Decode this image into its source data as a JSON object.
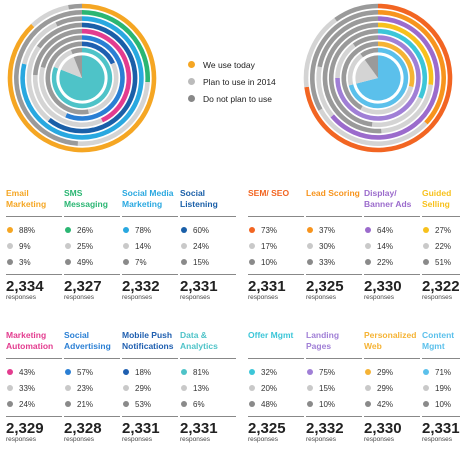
{
  "legend": [
    {
      "label": "We use today",
      "color": "#f5a623"
    },
    {
      "label": "Plan to use in 2014",
      "color": "#bbbbbb"
    },
    {
      "label": "Do not plan to use",
      "color": "#888888"
    }
  ],
  "colors": {
    "use_today_dot": "#f5a623",
    "plan_2014_dot": "#c9c9c9",
    "not_plan_dot": "#8a8a8a",
    "ring_plan": "#d4d4d4",
    "ring_not_plan": "#9a9a9a",
    "divider": "#888888"
  },
  "responses_label": "responses",
  "chart_data": [
    {
      "type": "radial-bar",
      "title": "",
      "series_legend": [
        "We use today",
        "Plan to use in 2014",
        "Do not plan to use"
      ],
      "categories": [
        "Email Marketing",
        "SMS Messaging",
        "Social Media Marketing",
        "Social Listening",
        "Marketing Automation",
        "Social Advertising",
        "Mobile Push Notifications",
        "Data & Analytics"
      ],
      "ring_colors": [
        "#f5a623",
        "#2bb673",
        "#29a8e0",
        "#1a5fa8",
        "#e33c8f",
        "#2a7fd4",
        "#1f5fb0",
        "#4ec3c8"
      ],
      "use_today": [
        88,
        26,
        78,
        60,
        43,
        57,
        18,
        81
      ],
      "plan_2014": [
        9,
        25,
        14,
        24,
        33,
        23,
        29,
        13
      ],
      "not_plan": [
        3,
        49,
        7,
        15,
        24,
        21,
        53,
        6
      ]
    },
    {
      "type": "radial-bar",
      "title": "",
      "series_legend": [
        "We use today",
        "Plan to use in 2014",
        "Do not plan to use"
      ],
      "categories": [
        "SEM/SEO",
        "Lead Scoring",
        "Display/Banner Ads",
        "Guided Selling",
        "Offer Mgmt",
        "Landing Pages",
        "Personalized Web",
        "Content Mgmt"
      ],
      "ring_colors": [
        "#f26522",
        "#f7941d",
        "#9b6bcc",
        "#f7c11d",
        "#3cc6d8",
        "#a07fd6",
        "#f5b335",
        "#5bc0eb"
      ],
      "use_today": [
        73,
        37,
        64,
        27,
        32,
        75,
        29,
        71
      ],
      "plan_2014": [
        17,
        30,
        14,
        22,
        20,
        15,
        29,
        19
      ],
      "not_plan": [
        10,
        33,
        22,
        51,
        48,
        10,
        42,
        10
      ]
    }
  ],
  "blocks": [
    {
      "columns": [
        {
          "name": "Email Marketing",
          "color": "#f5a623",
          "stats": [
            "88%",
            "9%",
            "3%"
          ],
          "total": "2,334"
        },
        {
          "name": "SMS Messaging",
          "color": "#2bb673",
          "stats": [
            "26%",
            "25%",
            "49%"
          ],
          "total": "2,327"
        },
        {
          "name": "Social Media Marketing",
          "color": "#29a8e0",
          "stats": [
            "78%",
            "14%",
            "7%"
          ],
          "total": "2,332"
        },
        {
          "name": "Social Listening",
          "color": "#1a5fa8",
          "stats": [
            "60%",
            "24%",
            "15%"
          ],
          "total": "2,331"
        }
      ]
    },
    {
      "columns": [
        {
          "name": "SEM/ SEO",
          "color": "#f26522",
          "stats": [
            "73%",
            "17%",
            "10%"
          ],
          "total": "2,331"
        },
        {
          "name": "Lead Scoring",
          "color": "#f7941d",
          "stats": [
            "37%",
            "30%",
            "33%"
          ],
          "total": "2,325"
        },
        {
          "name": "Display/ Banner Ads",
          "color": "#9b6bcc",
          "stats": [
            "64%",
            "14%",
            "22%"
          ],
          "total": "2,330"
        },
        {
          "name": "Guided Selling",
          "color": "#f7c11d",
          "stats": [
            "27%",
            "22%",
            "51%"
          ],
          "total": "2,322"
        }
      ]
    },
    {
      "columns": [
        {
          "name": "Marketing Automation",
          "color": "#e33c8f",
          "stats": [
            "43%",
            "33%",
            "24%"
          ],
          "total": "2,329"
        },
        {
          "name": "Social Advertising",
          "color": "#2a7fd4",
          "stats": [
            "57%",
            "23%",
            "21%"
          ],
          "total": "2,328"
        },
        {
          "name": "Mobile Push Notifications",
          "color": "#1f5fb0",
          "stats": [
            "18%",
            "29%",
            "53%"
          ],
          "total": "2,331"
        },
        {
          "name": "Data & Analytics",
          "color": "#4ec3c8",
          "stats": [
            "81%",
            "13%",
            "6%"
          ],
          "total": "2,331"
        }
      ]
    },
    {
      "columns": [
        {
          "name": "Offer Mgmt",
          "color": "#3cc6d8",
          "stats": [
            "32%",
            "20%",
            "48%"
          ],
          "total": "2,325"
        },
        {
          "name": "Landing Pages",
          "color": "#a07fd6",
          "stats": [
            "75%",
            "15%",
            "10%"
          ],
          "total": "2,332"
        },
        {
          "name": "Personalized Web",
          "color": "#f5b335",
          "stats": [
            "29%",
            "29%",
            "42%"
          ],
          "total": "2,330"
        },
        {
          "name": "Content Mgmt",
          "color": "#5bc0eb",
          "stats": [
            "71%",
            "19%",
            "10%"
          ],
          "total": "2,331"
        }
      ]
    }
  ]
}
